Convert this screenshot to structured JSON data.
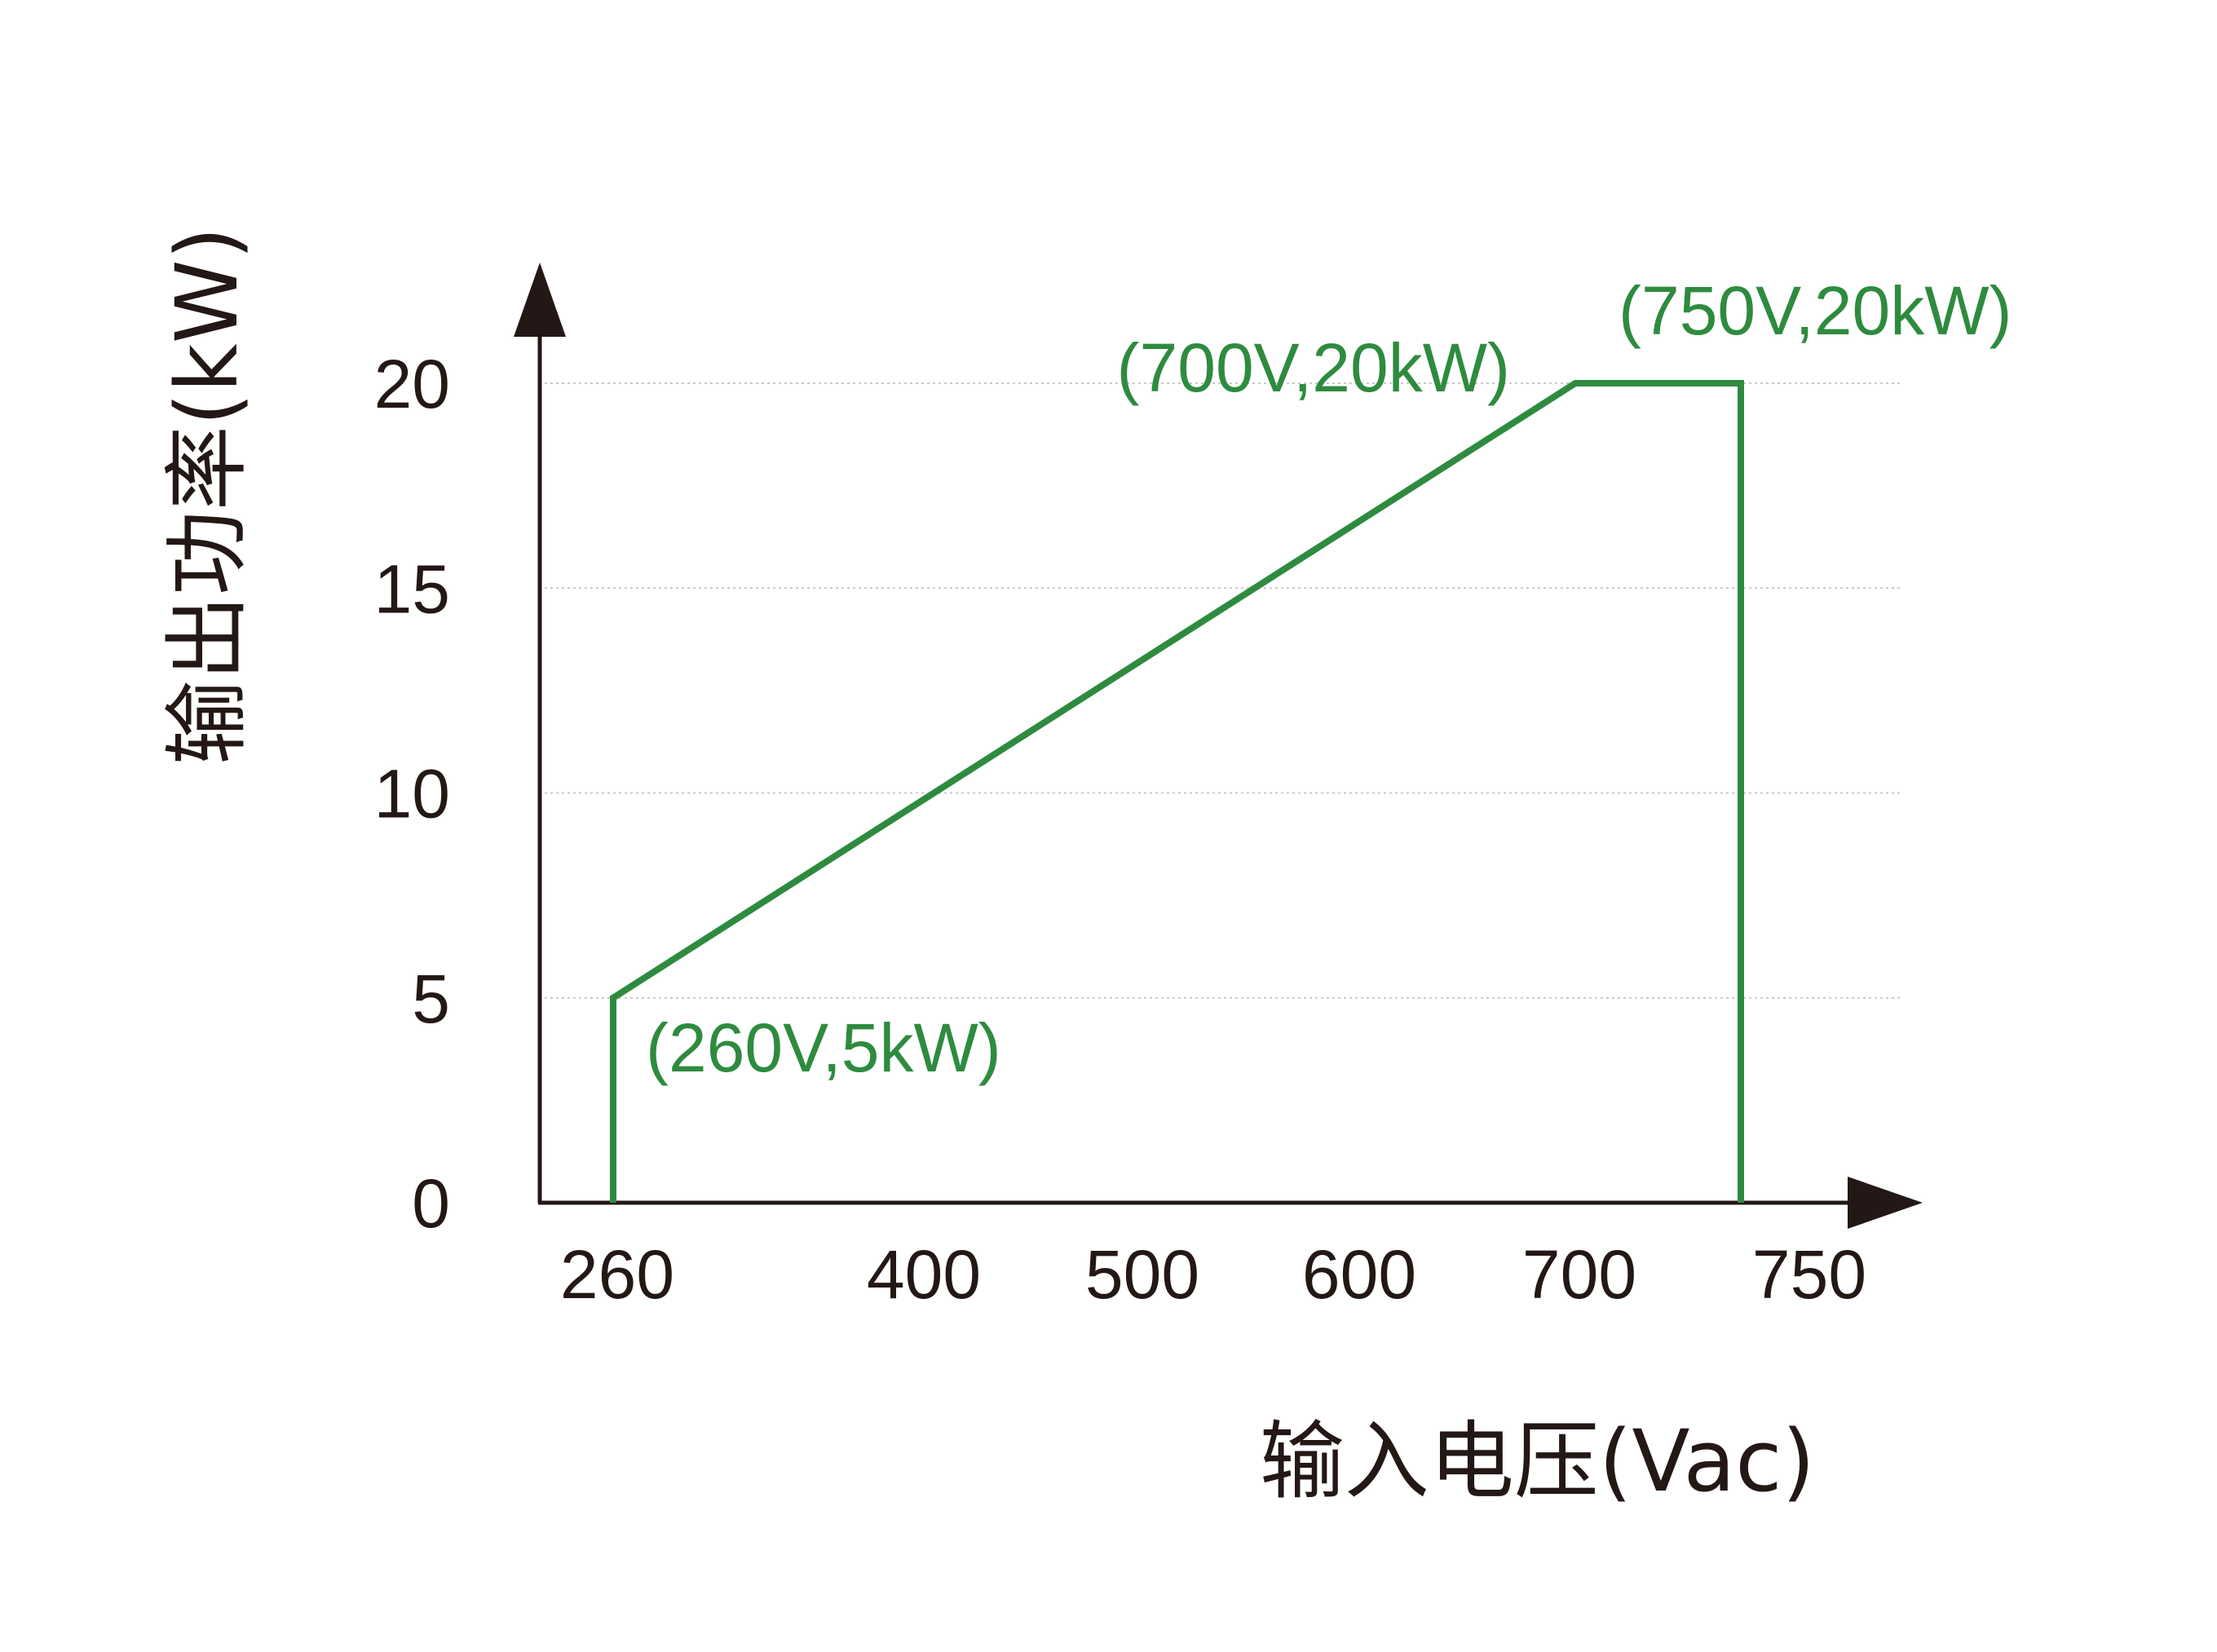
{
  "chart_data": {
    "type": "line",
    "title": "",
    "xlabel": "输入电压(Vac)",
    "ylabel": "输出功率(kW)",
    "x_ticks": [
      260,
      400,
      500,
      600,
      700,
      750
    ],
    "x_tick_labels": [
      "260",
      "400",
      "500",
      "600",
      "700",
      "750"
    ],
    "y_ticks": [
      0,
      5,
      10,
      15,
      20
    ],
    "y_tick_labels": [
      "0",
      "5",
      "10",
      "15",
      "20"
    ],
    "ylim": [
      0,
      20
    ],
    "grid": "horizontal dotted",
    "series": [
      {
        "color": "#2e8b3e",
        "points": [
          {
            "x": 260,
            "y": 0
          },
          {
            "x": 260,
            "y": 5
          },
          {
            "x": 700,
            "y": 20
          },
          {
            "x": 750,
            "y": 20
          },
          {
            "x": 750,
            "y": 0
          }
        ]
      }
    ],
    "annotations": [
      {
        "text": "(260V,5kW)",
        "x": 260,
        "y": 5,
        "placement": "below-right"
      },
      {
        "text": "(700V,20kW)",
        "x": 700,
        "y": 20,
        "placement": "above-left"
      },
      {
        "text": "(750V,20kW)",
        "x": 750,
        "y": 20,
        "placement": "above"
      }
    ],
    "colors": {
      "axis": "#231815",
      "series": "#2e8b3e",
      "grid": "#c9c9c9",
      "text": "#231815"
    }
  }
}
